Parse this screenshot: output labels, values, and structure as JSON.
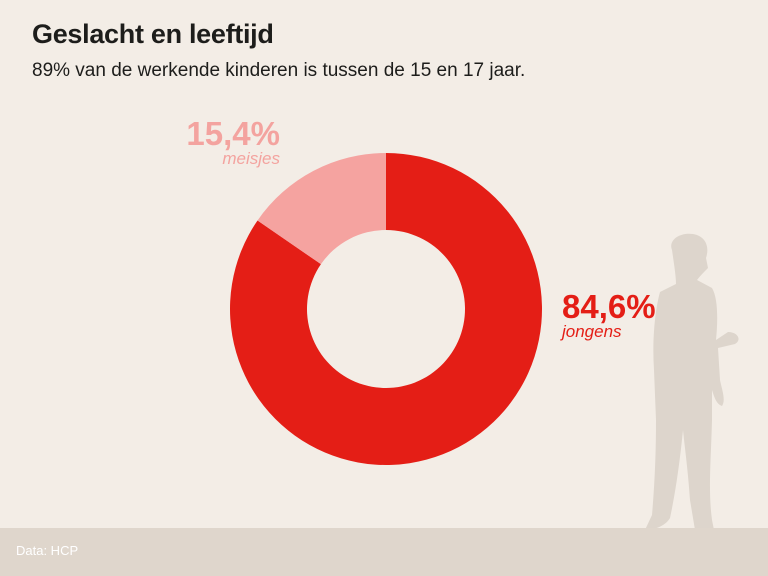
{
  "header": {
    "title": "Geslacht en leeftijd",
    "subtitle": "89% van de werkende kinderen is tussen de 15 en 17 jaar."
  },
  "chart_data": {
    "type": "pie",
    "variant": "donut",
    "title": "Geslacht en leeftijd",
    "subtitle": "89% van de werkende kinderen is tussen de 15 en 17 jaar.",
    "slices": [
      {
        "label": "jongens",
        "value": 84.6,
        "value_label": "84,6%",
        "color": "#e41e16"
      },
      {
        "label": "meisjes",
        "value": 15.4,
        "value_label": "15,4%",
        "color": "#f5a3a0"
      }
    ],
    "start_angle_deg": 0,
    "direction": "clockwise"
  },
  "decoration": {
    "silhouette": "standing-boy-silhouette",
    "color": "#ddd5cc"
  },
  "footer": {
    "source": "Data: HCP"
  },
  "colors": {
    "background": "#f3ede6",
    "footer": "#dfd6cc",
    "boys": "#e41e16",
    "girls": "#f5a3a0"
  }
}
